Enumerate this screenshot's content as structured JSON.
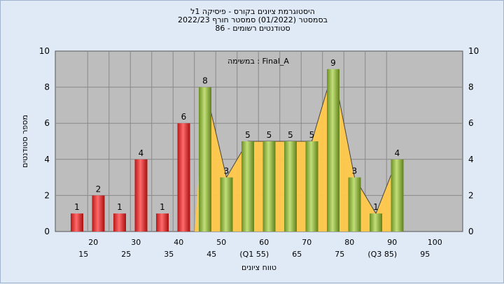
{
  "chart_data": {
    "type": "bar",
    "title_lines": [
      "היסטוגרמת ציונים בקורס - פיסיקה 1ל",
      "בסמסטר  (01/2022)  סמסטר חורף 2022/23",
      "סטודנטים רשומים - 86"
    ],
    "annotation": "במשימה : Final_A",
    "xlabel": "טווח ציונים",
    "ylabel": "מספר סטודנטים",
    "ylim": [
      0,
      10
    ],
    "y_ticks": [
      0,
      2,
      4,
      6,
      8,
      10
    ],
    "categories": [
      "15",
      "25",
      "30",
      "35",
      "40",
      "45",
      "55",
      "60",
      "65",
      "70",
      "75",
      "80",
      "85",
      "90",
      "95",
      "100"
    ],
    "values": [
      1,
      2,
      1,
      4,
      1,
      6,
      8,
      3,
      5,
      5,
      5,
      5,
      9,
      3,
      1,
      4
    ],
    "bar_colors": [
      "red",
      "red",
      "red",
      "red",
      "red",
      "red",
      "green",
      "green",
      "green",
      "green",
      "green",
      "green",
      "green",
      "green",
      "green",
      "green"
    ],
    "x_ticks_upper": [
      "20",
      "30",
      "40",
      "50",
      "60",
      "70",
      "80",
      "90",
      "100"
    ],
    "x_ticks_lower": [
      "15",
      "25",
      "35",
      "45",
      "(Q1 55)",
      "65",
      "75",
      "(Q3 85)",
      "95"
    ],
    "grid": true,
    "colors": {
      "red": "#e03030",
      "green": "#8fb83a",
      "area": "#ffc84a",
      "plot_bg": "#bdbdbd",
      "outer_bg": "#dfeaf6"
    }
  }
}
